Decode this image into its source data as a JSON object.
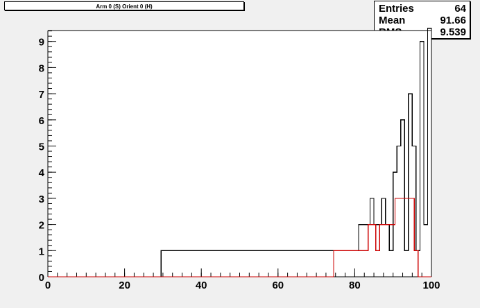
{
  "title": "Arm 0 (S) Orient 0 (H)",
  "stats": {
    "entries_label": "Entries",
    "entries_value": "64",
    "mean_label": "Mean",
    "mean_value": "91.66",
    "rms_label": "RMS",
    "rms_value": "9.539"
  },
  "chart_data": {
    "type": "histogram",
    "title": "Arm 0 (S) Orient 0 (H)",
    "xlim": [
      0,
      100
    ],
    "ylim": [
      0,
      9.5
    ],
    "x_ticks": [
      0,
      20,
      40,
      60,
      80,
      100
    ],
    "y_ticks": [
      0,
      1,
      2,
      3,
      4,
      5,
      6,
      7,
      8,
      9
    ],
    "series": [
      {
        "color": "#000000",
        "bins": [
          {
            "x0": 29.5,
            "x1": 30.5,
            "y": 1
          },
          {
            "x0": 79.0,
            "x1": 80.0,
            "y": 1
          },
          {
            "x0": 81.0,
            "x1": 82.0,
            "y": 2
          },
          {
            "x0": 83.0,
            "x1": 84.0,
            "y": 2
          },
          {
            "x0": 84.0,
            "x1": 85.0,
            "y": 3
          },
          {
            "x0": 85.0,
            "x1": 86.0,
            "y": 2
          },
          {
            "x0": 86.0,
            "x1": 87.0,
            "y": 2
          },
          {
            "x0": 87.0,
            "x1": 88.0,
            "y": 3
          },
          {
            "x0": 88.0,
            "x1": 89.0,
            "y": 2
          },
          {
            "x0": 89.0,
            "x1": 90.0,
            "y": 1
          },
          {
            "x0": 90.0,
            "x1": 91.0,
            "y": 4
          },
          {
            "x0": 91.0,
            "x1": 92.0,
            "y": 5
          },
          {
            "x0": 92.0,
            "x1": 93.0,
            "y": 6
          },
          {
            "x0": 93.0,
            "x1": 94.0,
            "y": 1
          },
          {
            "x0": 94.0,
            "x1": 95.0,
            "y": 7
          },
          {
            "x0": 95.0,
            "x1": 96.0,
            "y": 5
          },
          {
            "x0": 96.0,
            "x1": 97.0,
            "y": 1
          },
          {
            "x0": 97.0,
            "x1": 98.0,
            "y": 9
          },
          {
            "x0": 98.0,
            "x1": 99.0,
            "y": 2
          },
          {
            "x0": 99.0,
            "x1": 100.0,
            "y": 9.5
          }
        ]
      },
      {
        "color": "#cc0000",
        "bins": [
          {
            "x0": 74.5,
            "x1": 75.5,
            "y": 1
          },
          {
            "x0": 77.5,
            "x1": 79.5,
            "y": 1
          },
          {
            "x0": 83.5,
            "x1": 84.5,
            "y": 2
          },
          {
            "x0": 85.5,
            "x1": 86.5,
            "y": 1
          },
          {
            "x0": 86.5,
            "x1": 87.5,
            "y": 2
          },
          {
            "x0": 90.5,
            "x1": 92.5,
            "y": 3
          },
          {
            "x0": 95.5,
            "x1": 96.5,
            "y": 1
          }
        ]
      }
    ]
  }
}
